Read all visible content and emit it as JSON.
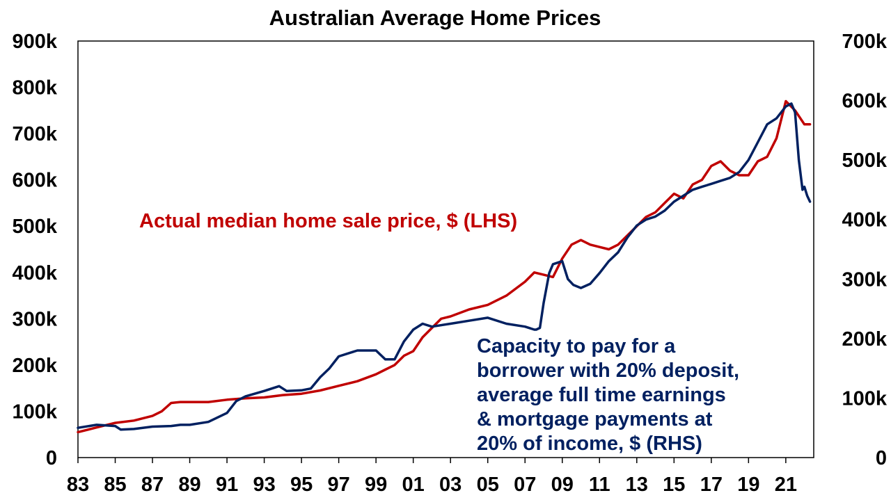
{
  "chart_data": {
    "type": "line",
    "title": "Australian Average Home Prices",
    "x_tick_labels": [
      "83",
      "85",
      "87",
      "89",
      "91",
      "93",
      "95",
      "97",
      "99",
      "01",
      "03",
      "05",
      "07",
      "09",
      "11",
      "13",
      "15",
      "17",
      "19",
      "21"
    ],
    "x_range": [
      1983,
      2022.5
    ],
    "y_left": {
      "range": [
        0,
        900000
      ],
      "tick_values": [
        0,
        100000,
        200000,
        300000,
        400000,
        500000,
        600000,
        700000,
        800000,
        900000
      ],
      "tick_labels": [
        "0",
        "100k",
        "200k",
        "300k",
        "400k",
        "500k",
        "600k",
        "700k",
        "800k",
        "900k"
      ]
    },
    "y_right": {
      "range": [
        0,
        700000
      ],
      "tick_values": [
        0,
        100000,
        200000,
        300000,
        400000,
        500000,
        600000,
        700000
      ],
      "tick_labels": [
        "0",
        "100k",
        "200k",
        "300k",
        "400k",
        "500k",
        "600k",
        "700k"
      ]
    },
    "grid": false,
    "legend": "none",
    "series": [
      {
        "name": "Actual median home sale price, $ (LHS)",
        "axis": "left",
        "color": "#c00000",
        "x": [
          1983.0,
          1984.0,
          1985.0,
          1986.0,
          1987.0,
          1987.5,
          1988.0,
          1988.5,
          1989.0,
          1990.0,
          1991.0,
          1992.0,
          1993.0,
          1994.0,
          1995.0,
          1996.0,
          1997.0,
          1998.0,
          1999.0,
          1999.5,
          2000.0,
          2000.5,
          2001.0,
          2001.5,
          2002.0,
          2002.5,
          2003.0,
          2004.0,
          2005.0,
          2006.0,
          2007.0,
          2007.5,
          2008.0,
          2008.5,
          2009.0,
          2009.5,
          2010.0,
          2010.5,
          2011.0,
          2011.5,
          2012.0,
          2012.5,
          2013.0,
          2013.5,
          2014.0,
          2014.5,
          2015.0,
          2015.5,
          2016.0,
          2016.5,
          2017.0,
          2017.5,
          2018.0,
          2018.5,
          2019.0,
          2019.5,
          2020.0,
          2020.5,
          2021.0,
          2021.5,
          2022.0,
          2022.3
        ],
        "y": [
          55000,
          65000,
          75000,
          80000,
          90000,
          100000,
          118000,
          120000,
          120000,
          120000,
          125000,
          128000,
          130000,
          135000,
          138000,
          145000,
          155000,
          165000,
          180000,
          190000,
          200000,
          220000,
          230000,
          260000,
          280000,
          300000,
          305000,
          320000,
          330000,
          350000,
          380000,
          400000,
          395000,
          390000,
          430000,
          460000,
          470000,
          460000,
          455000,
          450000,
          460000,
          480000,
          500000,
          520000,
          530000,
          550000,
          570000,
          560000,
          590000,
          600000,
          630000,
          640000,
          620000,
          610000,
          610000,
          640000,
          650000,
          690000,
          770000,
          750000,
          720000,
          720000
        ]
      },
      {
        "name": "Capacity to pay for a borrower with 20% deposit, average full time earnings & mortgage payments at 20% of income, $ (RHS)",
        "axis": "right",
        "color": "#002060",
        "x": [
          1983.0,
          1984.0,
          1985.0,
          1985.3,
          1986.0,
          1987.0,
          1988.0,
          1988.5,
          1989.0,
          1990.0,
          1991.0,
          1991.5,
          1992.0,
          1993.0,
          1993.8,
          1994.2,
          1995.0,
          1995.5,
          1996.0,
          1996.5,
          1997.0,
          1998.0,
          1999.0,
          1999.5,
          2000.0,
          2000.5,
          2001.0,
          2001.5,
          2002.0,
          2003.0,
          2004.0,
          2005.0,
          2006.0,
          2007.0,
          2007.5,
          2007.6,
          2007.8,
          2008.0,
          2008.3,
          2008.5,
          2009.0,
          2009.3,
          2009.6,
          2010.0,
          2010.5,
          2011.0,
          2011.5,
          2012.0,
          2012.5,
          2013.0,
          2013.5,
          2014.0,
          2014.5,
          2015.0,
          2015.5,
          2016.0,
          2016.5,
          2017.0,
          2017.5,
          2018.0,
          2018.5,
          2019.0,
          2019.5,
          2020.0,
          2020.5,
          2021.0,
          2021.3,
          2021.5,
          2021.7,
          2021.9,
          2022.0,
          2022.15,
          2022.3
        ],
        "y": [
          50000,
          55000,
          53000,
          47000,
          48000,
          52000,
          53000,
          55000,
          55000,
          60000,
          75000,
          95000,
          103000,
          112000,
          120000,
          112000,
          113000,
          116000,
          135000,
          150000,
          170000,
          180000,
          180000,
          165000,
          165000,
          195000,
          215000,
          225000,
          220000,
          225000,
          230000,
          235000,
          225000,
          220000,
          215000,
          215000,
          218000,
          260000,
          310000,
          325000,
          330000,
          300000,
          290000,
          285000,
          292000,
          310000,
          330000,
          345000,
          370000,
          390000,
          400000,
          405000,
          415000,
          430000,
          440000,
          450000,
          455000,
          460000,
          465000,
          470000,
          480000,
          500000,
          530000,
          560000,
          570000,
          590000,
          595000,
          580000,
          500000,
          450000,
          455000,
          440000,
          430000
        ]
      }
    ],
    "annotations": [
      {
        "lines": [
          "Actual median home sale price, $ (LHS)"
        ],
        "color": "#c00000"
      },
      {
        "lines": [
          "Capacity to pay for a",
          "borrower with 20% deposit,",
          "average full time earnings",
          "& mortgage payments at",
          "20% of income, $ (RHS)"
        ],
        "color": "#002060"
      }
    ]
  }
}
